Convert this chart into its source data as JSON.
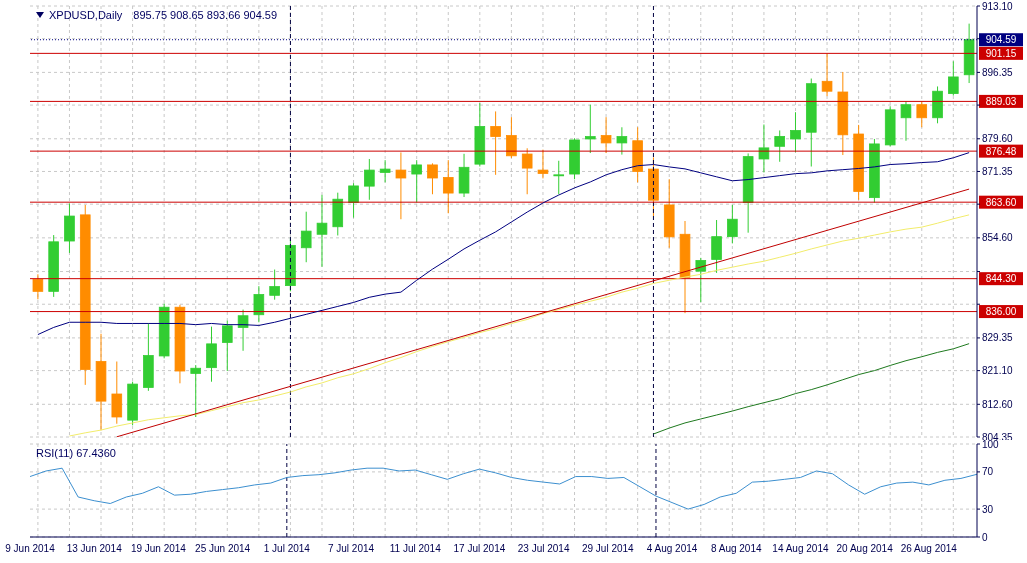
{
  "chart_data": [
    {
      "type": "candlestick",
      "title": "XPDUSD,Daily",
      "subtitle": "895.75 908.65 893.66 904.59",
      "categories": [
        null,
        null,
        null,
        null,
        null,
        null,
        null,
        null,
        null,
        null,
        null,
        null,
        null,
        null,
        null,
        null,
        null,
        null,
        null,
        null,
        null,
        null,
        null,
        null,
        null,
        null,
        null,
        null,
        null,
        null,
        null,
        null,
        null,
        null,
        null,
        null,
        null,
        null,
        null,
        null,
        null,
        null,
        null,
        null,
        null,
        null,
        null,
        null,
        null,
        null,
        null,
        null,
        null,
        null,
        null,
        null,
        null,
        null,
        null,
        null
      ],
      "ohlc": [
        [
          844.1,
          845.4,
          839.1,
          841.1
        ],
        [
          841.1,
          855.3,
          839.7,
          853.6
        ],
        [
          853.8,
          863.3,
          850.8,
          860.1
        ],
        [
          860.4,
          862.9,
          817.5,
          821.4
        ],
        [
          823.4,
          830.4,
          806.05,
          813.4
        ],
        [
          815.2,
          823.4,
          807.7,
          809.4
        ],
        [
          808.6,
          818.3,
          807.3,
          817.7
        ],
        [
          816.85,
          833.1,
          816.0,
          824.9
        ],
        [
          824.8,
          838.0,
          824.2,
          837.1
        ],
        [
          837.1,
          837.7,
          817.9,
          821.0
        ],
        [
          820.4,
          822.5,
          809.4,
          821.7
        ],
        [
          821.85,
          832.2,
          818.3,
          827.85
        ],
        [
          828.2,
          833.7,
          821.0,
          832.4
        ],
        [
          832.0,
          836.5,
          826.1,
          834.95
        ],
        [
          835.2,
          842.4,
          833.3,
          840.3
        ],
        [
          840.1,
          846.6,
          839.0,
          842.3
        ],
        [
          842.55,
          854.6,
          841.1,
          852.7
        ],
        [
          852.1,
          861.2,
          848.45,
          856.3
        ],
        [
          855.5,
          865.45,
          847.3,
          858.3
        ],
        [
          857.4,
          866.0,
          855.2,
          864.35
        ],
        [
          863.5,
          868.4,
          859.7,
          867.7
        ],
        [
          867.65,
          874.5,
          864.2,
          871.7
        ],
        [
          871.1,
          874.2,
          868.6,
          871.95
        ],
        [
          871.7,
          876.15,
          859.3,
          869.7
        ],
        [
          870.7,
          874.2,
          863.5,
          873.0
        ],
        [
          873.0,
          873.4,
          865.6,
          869.7
        ],
        [
          869.85,
          874.2,
          860.8,
          865.9
        ],
        [
          865.9,
          875.8,
          864.9,
          872.4
        ],
        [
          873.2,
          888.6,
          872.6,
          882.7
        ],
        [
          882.7,
          886.5,
          870.5,
          880.15
        ],
        [
          880.4,
          885.05,
          874.75,
          875.3
        ],
        [
          875.75,
          877.2,
          865.6,
          872.2
        ],
        [
          871.7,
          876.85,
          869.6,
          870.85
        ],
        [
          870.4,
          874.05,
          865.6,
          870.5
        ],
        [
          870.7,
          879.7,
          869.4,
          879.3
        ],
        [
          879.55,
          888.2,
          876.0,
          880.15
        ],
        [
          880.4,
          885.05,
          876.0,
          878.55
        ],
        [
          878.55,
          882.5,
          875.6,
          880.15
        ],
        [
          879.1,
          882.5,
          868.6,
          871.35
        ],
        [
          871.95,
          874.9,
          860.1,
          864.1
        ],
        [
          862.9,
          869.4,
          852.1,
          854.85
        ],
        [
          855.5,
          858.85,
          835.6,
          844.65
        ],
        [
          846.2,
          849.55,
          838.4,
          848.9
        ],
        [
          849.15,
          859.1,
          845.75,
          854.9
        ],
        [
          854.9,
          862.9,
          853.2,
          859.3
        ],
        [
          863.5,
          875.9,
          855.9,
          875.1
        ],
        [
          874.5,
          883.2,
          871.1,
          877.3
        ],
        [
          877.7,
          881.7,
          873.8,
          880.2
        ],
        [
          879.55,
          886.3,
          876.2,
          881.7
        ],
        [
          881.25,
          894.8,
          872.6,
          893.5
        ],
        [
          894.1,
          901.1,
          890.35,
          891.6
        ],
        [
          891.4,
          896.45,
          875.5,
          880.6
        ],
        [
          880.8,
          883.1,
          864.2,
          866.3
        ],
        [
          864.75,
          879.55,
          863.5,
          878.3
        ],
        [
          878.05,
          887.8,
          877.7,
          886.9
        ],
        [
          884.9,
          889.0,
          879.1,
          888.2
        ],
        [
          888.2,
          889.0,
          882.5,
          884.9
        ],
        [
          884.9,
          892.8,
          883.5,
          891.6
        ],
        [
          891.0,
          899.15,
          890.5,
          895.2
        ],
        [
          895.75,
          908.65,
          893.66,
          904.59
        ]
      ],
      "colors": [
        "#ff8c00",
        "#32cd32",
        "#32cd32",
        "#ff8c00",
        "#ff8c00",
        "#ff8c00",
        "#32cd32",
        "#32cd32",
        "#32cd32",
        "#ff8c00",
        "#32cd32",
        "#32cd32",
        "#32cd32",
        "#32cd32",
        "#32cd32",
        "#32cd32",
        "#32cd32",
        "#32cd32",
        "#32cd32",
        "#32cd32",
        "#32cd32",
        "#32cd32",
        "#32cd32",
        "#ff8c00",
        "#32cd32",
        "#ff8c00",
        "#ff8c00",
        "#32cd32",
        "#32cd32",
        "#ff8c00",
        "#ff8c00",
        "#ff8c00",
        "#ff8c00",
        "#32cd32",
        "#32cd32",
        "#32cd32",
        "#ff8c00",
        "#32cd32",
        "#ff8c00",
        "#ff8c00",
        "#ff8c00",
        "#ff8c00",
        "#32cd32",
        "#32cd32",
        "#32cd32",
        "#32cd32",
        "#32cd32",
        "#32cd32",
        "#32cd32",
        "#32cd32",
        "#ff8c00",
        "#ff8c00",
        "#ff8c00",
        "#32cd32",
        "#32cd32",
        "#32cd32",
        "#ff8c00",
        "#32cd32",
        "#32cd32",
        "#32cd32"
      ],
      "series": [
        {
          "type": "line",
          "color": "#000080",
          "values": [
            830.2,
            832.0,
            833.3,
            833.3,
            833.3,
            833.0,
            833.0,
            833.0,
            833.0,
            833.0,
            832.7,
            833.0,
            832.7,
            832.7,
            832.5,
            833.3,
            834.3,
            835.3,
            836.3,
            837.3,
            838.3,
            839.6,
            840.4,
            840.9,
            843.9,
            846.7,
            849.2,
            851.8,
            854.0,
            856.1,
            858.6,
            861.1,
            863.4,
            865.4,
            867.2,
            868.7,
            870.5,
            871.8,
            872.8,
            873.1,
            872.5,
            872.0,
            871.0,
            870.0,
            869.0,
            869.3,
            869.8,
            870.3,
            870.8,
            871.0,
            871.5,
            871.8,
            872.1,
            872.5,
            873.1,
            873.3,
            873.6,
            873.8,
            874.8,
            876.1
          ]
        },
        {
          "type": "line",
          "color": "#f2ec6a",
          "values": [
            null,
            null,
            804.6,
            805.4,
            806.1,
            807.1,
            807.9,
            808.7,
            809.2,
            809.7,
            810.0,
            811.0,
            812.0,
            813.0,
            813.7,
            814.7,
            815.7,
            817.0,
            818.0,
            819.3,
            820.3,
            821.6,
            823.1,
            824.4,
            825.9,
            827.2,
            828.4,
            829.5,
            830.7,
            831.7,
            833.0,
            834.0,
            835.5,
            836.5,
            837.6,
            838.6,
            839.6,
            840.9,
            841.9,
            843.1,
            843.9,
            844.7,
            845.4,
            846.4,
            847.2,
            848.0,
            848.7,
            849.7,
            850.7,
            851.8,
            852.8,
            853.8,
            854.5,
            855.3,
            856.1,
            856.8,
            857.3,
            858.3,
            859.4,
            860.4
          ]
        },
        {
          "type": "line",
          "color": "#1f7a1f",
          "values": [
            null,
            null,
            null,
            null,
            null,
            null,
            null,
            null,
            null,
            null,
            null,
            null,
            null,
            null,
            null,
            null,
            null,
            null,
            null,
            null,
            null,
            null,
            null,
            null,
            null,
            null,
            null,
            null,
            null,
            null,
            null,
            null,
            null,
            null,
            null,
            null,
            null,
            null,
            null,
            805.1,
            806.6,
            807.9,
            808.9,
            809.9,
            810.9,
            812.0,
            813.0,
            814.0,
            815.3,
            816.3,
            817.5,
            818.8,
            820.1,
            821.1,
            822.4,
            823.6,
            824.6,
            825.7,
            826.6,
            827.9
          ]
        },
        {
          "type": "line",
          "color": "#c00000",
          "values": [
            null,
            null,
            null,
            null,
            null,
            804.4,
            null,
            null,
            null,
            null,
            null,
            null,
            null,
            null,
            null,
            null,
            null,
            null,
            null,
            null,
            null,
            null,
            null,
            null,
            null,
            null,
            null,
            null,
            null,
            null,
            null,
            null,
            null,
            null,
            null,
            null,
            null,
            null,
            null,
            null,
            null,
            null,
            null,
            null,
            null,
            null,
            null,
            null,
            null,
            null,
            null,
            null,
            null,
            null,
            null,
            null,
            null,
            null,
            null,
            866.9
          ]
        }
      ],
      "ylim": [
        804.35,
        913.1
      ],
      "yticks": [
        {
          "value": 913.1,
          "label": "913.10"
        },
        {
          "value": 904.85,
          "label": null
        },
        {
          "value": 896.35,
          "label": "896.35"
        },
        {
          "value": 888.1,
          "label": null
        },
        {
          "value": 879.6,
          "label": "879.60"
        },
        {
          "value": 871.35,
          "label": "871.35"
        },
        {
          "value": 863.1,
          "label": null
        },
        {
          "value": 854.6,
          "label": "854.60"
        },
        {
          "value": 846.1,
          "label": null
        },
        {
          "value": 837.85,
          "label": null
        },
        {
          "value": 829.35,
          "label": "829.35"
        },
        {
          "value": 821.1,
          "label": "821.10"
        },
        {
          "value": 812.6,
          "label": "812.60"
        },
        {
          "value": 804.35,
          "label": "804.35"
        }
      ],
      "grid": true,
      "tick_labels": "y",
      "ref_lines": [
        {
          "axis": "y",
          "value": 904.59,
          "label": "904.59",
          "color": "#000080",
          "line_style": "dotted"
        },
        {
          "axis": "y",
          "value": 901.15,
          "label": "901.15",
          "color": "#cc0000"
        },
        {
          "axis": "y",
          "value": 889.03,
          "label": "889.03",
          "color": "#cc0000"
        },
        {
          "axis": "y",
          "value": 876.48,
          "label": "876.48",
          "color": "#cc0000"
        },
        {
          "axis": "y",
          "value": 863.6,
          "label": "863.60",
          "color": "#cc0000"
        },
        {
          "axis": "y",
          "value": 844.3,
          "label": "844.30",
          "color": "#cc0000"
        },
        {
          "axis": "y",
          "value": 836.0,
          "label": "836.00",
          "color": "#cc0000"
        }
      ]
    },
    {
      "type": "line",
      "title": "RSI(11) 67.4360",
      "categories": [
        "9 Jun 2014",
        null,
        null,
        null,
        "13 Jun 2014",
        null,
        null,
        null,
        "19 Jun 2014",
        null,
        null,
        null,
        "25 Jun 2014",
        null,
        null,
        null,
        "1 Jul 2014",
        null,
        null,
        null,
        "7 Jul 2014",
        null,
        null,
        null,
        "11 Jul 2014",
        null,
        null,
        null,
        "17 Jul 2014",
        null,
        null,
        null,
        "23 Jul 2014",
        null,
        null,
        null,
        "29 Jul 2014",
        null,
        null,
        null,
        "4 Aug 2014",
        null,
        null,
        null,
        "8 Aug 2014",
        null,
        null,
        null,
        "14 Aug 2014",
        null,
        null,
        null,
        "20 Aug 2014",
        null,
        null,
        null,
        "26 Aug 2014",
        null,
        null,
        null
      ],
      "color": "#3c8fcf",
      "values": [
        65,
        71,
        74,
        43,
        39,
        36,
        43,
        47,
        54,
        45,
        46,
        49,
        51,
        53,
        56,
        58,
        64,
        66,
        67,
        69,
        72,
        74,
        74,
        71,
        72,
        67,
        62,
        68,
        73,
        69,
        64,
        61,
        59,
        57,
        65,
        65,
        63,
        64,
        54,
        44,
        37,
        30,
        35,
        43,
        47,
        59,
        60,
        62,
        64,
        71,
        68,
        56,
        46,
        54,
        58,
        59,
        56,
        61,
        63,
        67.436
      ],
      "ylim": [
        0,
        100
      ],
      "yticks": [
        0,
        30,
        70,
        100
      ],
      "grid": true
    }
  ]
}
